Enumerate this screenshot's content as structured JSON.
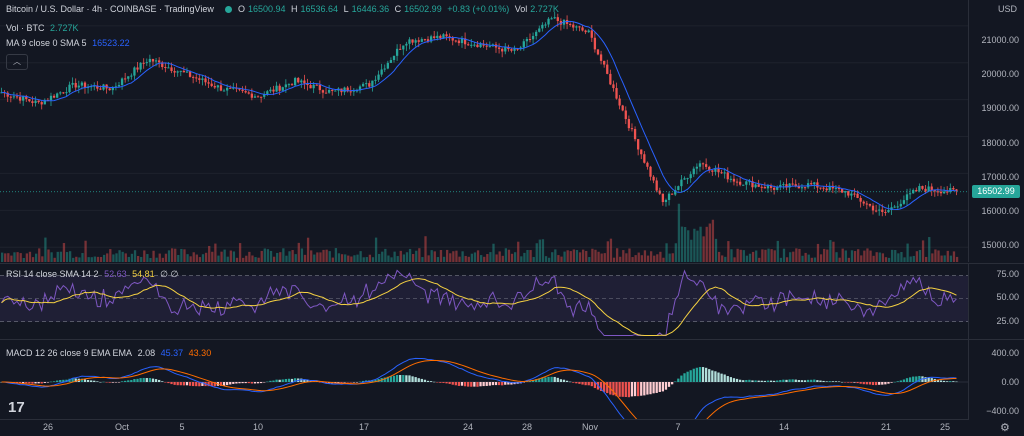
{
  "header": {
    "title": "Bitcoin / U.S. Dollar · 4h · COINBASE · TradingView",
    "ohlc": {
      "o_label": "O",
      "o": "16500.94",
      "h_label": "H",
      "h": "16536.64",
      "l_label": "L",
      "l": "16446.36",
      "c_label": "C",
      "c": "16502.99",
      "chg": "+0.83 (+0.01%)"
    },
    "vol_label": "Vol",
    "vol": "2.727K",
    "vol_row_label": "Vol · BTC",
    "vol_row_value": "2.727K",
    "ma_label": "MA 9 close 0 SMA 5",
    "ma_value": "16523.22",
    "collapse_icon": "chevron-up-icon",
    "collapse_glyph": "︿"
  },
  "price_axis": {
    "currency": "USD",
    "labels": [
      "21000.00",
      "20000.00",
      "19000.00",
      "18000.00",
      "17000.00",
      "16000.00",
      "15000.00"
    ],
    "last_price": "16502.99"
  },
  "rsi": {
    "label": "RSI 14 close SMA 14 2",
    "v1": "52.63",
    "v2": "54.81",
    "v3": "∅ ∅",
    "axis_labels": [
      "75.00",
      "50.00",
      "25.00"
    ]
  },
  "macd": {
    "label": "MACD 12 26 close 9 EMA EMA",
    "v1": "2.08",
    "v2": "45.37",
    "v3": "43.30",
    "axis_labels": [
      "400.00",
      "0.00",
      "−400.00"
    ]
  },
  "time_axis": {
    "labels": [
      "26",
      "Oct",
      "5",
      "10",
      "17",
      "24",
      "28",
      "Nov",
      "7",
      "14",
      "21",
      "25"
    ]
  },
  "colors": {
    "up": "#26a69a",
    "down": "#ef5350",
    "ma": "#2962ff",
    "rsi": "#7e57c2",
    "rsi_ma": "#f5d142",
    "macd": "#2962ff",
    "signal": "#ff6d00"
  },
  "logo": "17",
  "settings_icon": "gear-icon",
  "chart_data": {
    "type": "line",
    "title": "Bitcoin / U.S. Dollar · 4h · COINBASE",
    "x_ticks": [
      "26",
      "Oct",
      "5",
      "10",
      "17",
      "24",
      "28",
      "Nov",
      "7",
      "14",
      "21",
      "25"
    ],
    "y_ticks": [
      15000,
      16000,
      17000,
      18000,
      19000,
      20000,
      21000
    ],
    "ylim": [
      14600,
      21700
    ],
    "close_series": [
      {
        "x": "Sep 23",
        "y": 19200
      },
      {
        "x": "Sep 26",
        "y": 18900
      },
      {
        "x": "Sep 28",
        "y": 19400
      },
      {
        "x": "Oct 1",
        "y": 19300
      },
      {
        "x": "Oct 5",
        "y": 20100
      },
      {
        "x": "Oct 7",
        "y": 19700
      },
      {
        "x": "Oct 10",
        "y": 19300
      },
      {
        "x": "Oct 13",
        "y": 19100
      },
      {
        "x": "Oct 17",
        "y": 19500
      },
      {
        "x": "Oct 20",
        "y": 19200
      },
      {
        "x": "Oct 24",
        "y": 19400
      },
      {
        "x": "Oct 26",
        "y": 20600
      },
      {
        "x": "Oct 29",
        "y": 20700
      },
      {
        "x": "Nov 1",
        "y": 20500
      },
      {
        "x": "Nov 3",
        "y": 20300
      },
      {
        "x": "Nov 5",
        "y": 21200
      },
      {
        "x": "Nov 7",
        "y": 20800
      },
      {
        "x": "Nov 8",
        "y": 18500
      },
      {
        "x": "Nov 9",
        "y": 16200
      },
      {
        "x": "Nov 10",
        "y": 17300
      },
      {
        "x": "Nov 12",
        "y": 16800
      },
      {
        "x": "Nov 14",
        "y": 16600
      },
      {
        "x": "Nov 17",
        "y": 16700
      },
      {
        "x": "Nov 20",
        "y": 16500
      },
      {
        "x": "Nov 21",
        "y": 15900
      },
      {
        "x": "Nov 23",
        "y": 16600
      },
      {
        "x": "Nov 25",
        "y": 16503
      }
    ]
  }
}
